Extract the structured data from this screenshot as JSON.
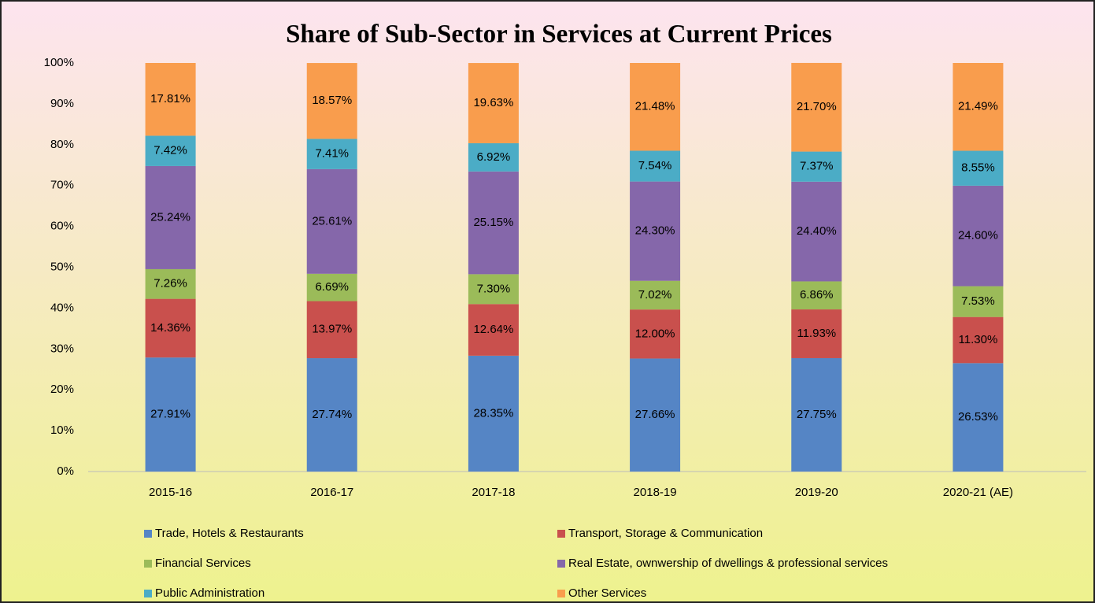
{
  "chart_data": {
    "type": "stacked_bar",
    "title": "Share of Sub-Sector in Services at Current Prices",
    "categories": [
      "2015-16",
      "2016-17",
      "2017-18",
      "2018-19",
      "2019-20",
      "2020-21 (AE)"
    ],
    "series": [
      {
        "name": "Trade, Hotels & Restaurants",
        "color": "#5585c5",
        "values": [
          27.91,
          27.74,
          28.35,
          27.66,
          27.75,
          26.53
        ],
        "value_labels": [
          "27.91%",
          "27.74%",
          "28.35%",
          "27.66%",
          "27.75%",
          "26.53%"
        ]
      },
      {
        "name": "Transport, Storage & Communication",
        "color": "#c9504d",
        "values": [
          14.36,
          13.97,
          12.64,
          12.0,
          11.93,
          11.3
        ],
        "value_labels": [
          "14.36%",
          "13.97%",
          "12.64%",
          "12.00%",
          "11.93%",
          "11.30%"
        ]
      },
      {
        "name": "Financial Services",
        "color": "#9bbb59",
        "values": [
          7.26,
          6.69,
          7.3,
          7.02,
          6.86,
          7.53
        ],
        "value_labels": [
          "7.26%",
          "6.69%",
          "7.30%",
          "7.02%",
          "6.86%",
          "7.53%"
        ]
      },
      {
        "name": "Real Estate, ownwership of dwellings & professional services",
        "color": "#8567aa",
        "values": [
          25.24,
          25.61,
          25.15,
          24.3,
          24.4,
          24.6
        ],
        "value_labels": [
          "25.24%",
          "25.61%",
          "25.15%",
          "24.30%",
          "24.40%",
          "24.60%"
        ]
      },
      {
        "name": "Public Administration",
        "color": "#4bacc6",
        "values": [
          7.42,
          7.41,
          6.92,
          7.54,
          7.37,
          8.55
        ],
        "value_labels": [
          "7.42%",
          "7.41%",
          "6.92%",
          "7.54%",
          "7.37%",
          "8.55%"
        ]
      },
      {
        "name": "Other Services",
        "color": "#f99d4d",
        "values": [
          17.81,
          18.57,
          19.63,
          21.48,
          21.7,
          21.49
        ],
        "value_labels": [
          "17.81%",
          "18.57%",
          "19.63%",
          "21.48%",
          "21.70%",
          "21.49%"
        ]
      }
    ],
    "ylim": [
      0,
      100
    ],
    "yticks": [
      {
        "value": 0,
        "label": "0%"
      },
      {
        "value": 10,
        "label": "10%"
      },
      {
        "value": 20,
        "label": "20%"
      },
      {
        "value": 30,
        "label": "30%"
      },
      {
        "value": 40,
        "label": "40%"
      },
      {
        "value": 50,
        "label": "50%"
      },
      {
        "value": 60,
        "label": "60%"
      },
      {
        "value": 70,
        "label": "70%"
      },
      {
        "value": 80,
        "label": "80%"
      },
      {
        "value": 90,
        "label": "90%"
      },
      {
        "value": 100,
        "label": "100%"
      }
    ],
    "grid": false,
    "legend": "bottom"
  }
}
